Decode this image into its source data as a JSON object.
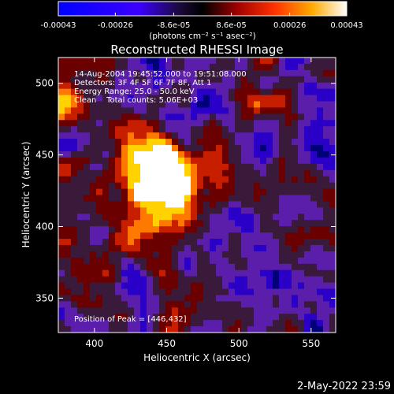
{
  "chart_data": {
    "type": "heatmap",
    "title": "Reconstructed RHESSI Image",
    "xlabel": "Heliocentric X (arcsec)",
    "ylabel": "Heliocentric Y (arcsec)",
    "xlim": [
      375,
      567
    ],
    "ylim": [
      326,
      518
    ],
    "xticks": [
      400,
      450,
      500,
      550
    ],
    "yticks": [
      350,
      400,
      450,
      500
    ],
    "colorbar": {
      "ticks": [
        "-0.00043",
        "-0.00026",
        "-8.6e-05",
        "8.6e-05",
        "0.00026",
        "0.00043"
      ],
      "unit_label": "(photons cm⁻² s⁻¹ asec⁻²)",
      "range": [
        -0.00043,
        0.00043
      ]
    },
    "annotations": [
      "14-Aug-2004 19:45:52.000 to 19:51:08.000",
      "Detectors: 3F 4F 5F 6F 7F 8F, Att 1",
      "Energy Range: 25.0 - 50.0 keV",
      "Clean    Total counts: 5.06E+03"
    ],
    "peak_label": "Position of Peak = [446,432]",
    "peak": {
      "x": 446,
      "y": 432,
      "value": 0.00043
    },
    "colormap": [
      "#000078",
      "#2a00c8",
      "#5a1eaa",
      "#3a1a3a",
      "#6a0000",
      "#c81e00",
      "#ff7800",
      "#ffd200",
      "#ffffff"
    ]
  },
  "timestamp": "2-May-2022 23:59"
}
